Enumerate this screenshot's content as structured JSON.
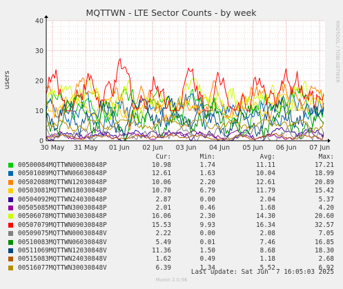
{
  "chart_data": {
    "type": "line",
    "title": "MQTTWN - LTE Sector Counts - by week",
    "ylabel": "users",
    "ylim": [
      0,
      40
    ],
    "y_ticks": [
      "0",
      "10",
      "20",
      "30",
      "40"
    ],
    "x_ticks": [
      "30 May",
      "31 May",
      "01 Jun",
      "02 Jun",
      "03 Jun",
      "04 Jun",
      "05 Jun",
      "06 Jun",
      "07 Jun"
    ],
    "side_label": "RRDTOOL / TOBI OETIKER",
    "grid": true,
    "series": [
      {
        "name": "00500084MQTTWN00030848P",
        "color": "#00cc00",
        "cur": "10.98",
        "min": "1.74",
        "avg": "11.11",
        "max": "17.21"
      },
      {
        "name": "00501089MQTTWN06030848P",
        "color": "#0066b3",
        "cur": "12.61",
        "min": "1.63",
        "avg": "10.04",
        "max": "18.99"
      },
      {
        "name": "00502088MQTTWN12030848P",
        "color": "#ff8000",
        "cur": "10.06",
        "min": "2.20",
        "avg": "12.61",
        "max": "20.89"
      },
      {
        "name": "00503081MQTTWN18030848P",
        "color": "#ffcc00",
        "cur": "10.70",
        "min": "6.79",
        "avg": "11.79",
        "max": "15.42"
      },
      {
        "name": "00504092MQTTWN24030848P",
        "color": "#330099",
        "cur": "2.87",
        "min": "0.00",
        "avg": "2.04",
        "max": "5.37"
      },
      {
        "name": "00505085MQTTWN30030848P",
        "color": "#990099",
        "cur": "2.01",
        "min": "0.46",
        "avg": "1.68",
        "max": "4.20"
      },
      {
        "name": "00506078MQTTWN03030848P",
        "color": "#ccff00",
        "cur": "16.06",
        "min": "2.30",
        "avg": "14.30",
        "max": "20.60"
      },
      {
        "name": "00507079MQTTWN09030848P",
        "color": "#ff0000",
        "cur": "15.53",
        "min": "9.93",
        "avg": "16.34",
        "max": "32.57"
      },
      {
        "name": "00509075MQTTWN00030848V",
        "color": "#808080",
        "cur": "2.22",
        "min": "0.00",
        "avg": "2.08",
        "max": "7.05"
      },
      {
        "name": "00510083MQTTWN06030848V",
        "color": "#008f00",
        "cur": "5.49",
        "min": "0.01",
        "avg": "7.46",
        "max": "16.85"
      },
      {
        "name": "00511069MQTTWN12030848V",
        "color": "#00487d",
        "cur": "11.36",
        "min": "1.50",
        "avg": "8.68",
        "max": "18.30"
      },
      {
        "name": "00515083MQTTWN24030848V",
        "color": "#b35a00",
        "cur": "1.62",
        "min": "0.49",
        "avg": "1.18",
        "max": "2.68"
      },
      {
        "name": "00516077MQTTWN30030848V",
        "color": "#b38f00",
        "cur": "6.39",
        "min": "1.34",
        "avg": "5.52",
        "max": "6.92"
      }
    ]
  },
  "legend": {
    "cur": "Cur:",
    "min": "Min:",
    "avg": "Avg:",
    "max": "Max:"
  },
  "last_update": "Last update: Sat Jun  7 16:05:03 2025",
  "munin_version": "Munin 2.0.56"
}
